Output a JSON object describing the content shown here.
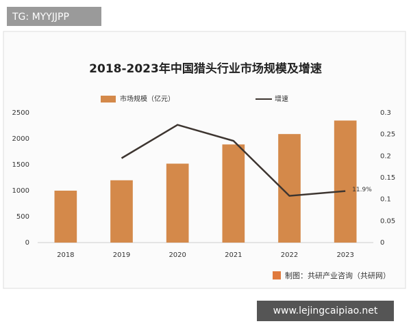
{
  "overlay_top": "TG: MYYJJPP",
  "overlay_bottom": "www.lejingcaipiao.net",
  "chart_data": {
    "type": "bar",
    "title": "2018-2023年中国猎头行业市场规模及增速",
    "source": "制图：共研产业咨询（共研网）",
    "categories": [
      "2018",
      "2019",
      "2020",
      "2021",
      "2022",
      "2023"
    ],
    "series": [
      {
        "name": "市场规模（亿元）",
        "type": "bar",
        "color": "#d4894a",
        "values": [
          1000,
          1200,
          1520,
          1890,
          2090,
          2350
        ]
      },
      {
        "name": "增速",
        "type": "line",
        "axis": "y2",
        "color": "#3d3530",
        "values": [
          null,
          0.195,
          0.272,
          0.235,
          0.108,
          0.119
        ],
        "value_labels": [
          null,
          null,
          null,
          null,
          null,
          "11.9%"
        ]
      }
    ],
    "ylim": [
      0,
      2500
    ],
    "yticks": [
      0,
      500,
      1000,
      1500,
      2000,
      2500
    ],
    "y2lim": [
      0,
      0.3
    ],
    "y2ticks": [
      0,
      0.05,
      0.1,
      0.15,
      0.2,
      0.25,
      0.3
    ],
    "grid": false,
    "legend": "top"
  }
}
